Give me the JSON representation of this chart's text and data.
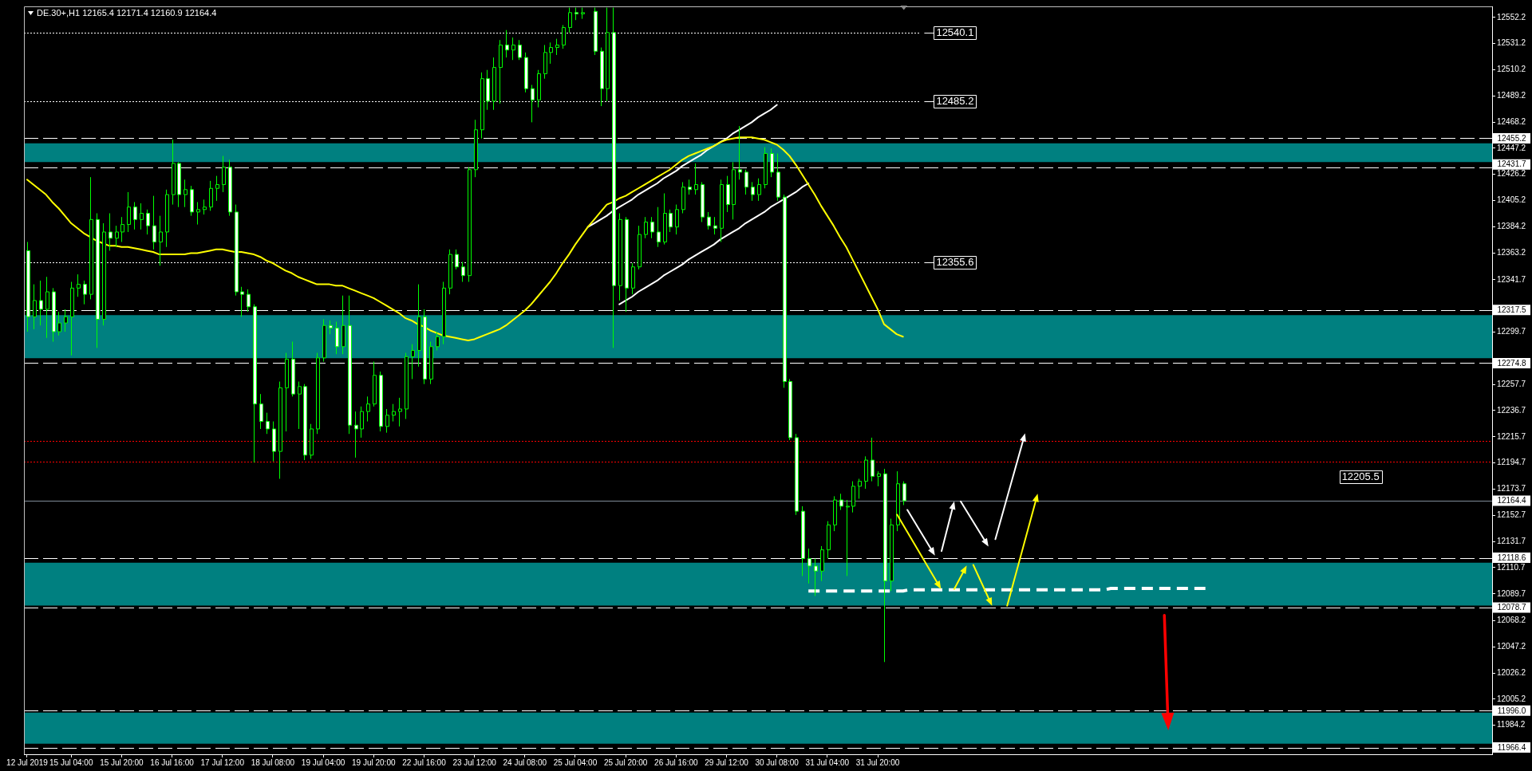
{
  "chart_data": {
    "type": "candlestick",
    "title": "DE.30+,H1 12165.4 12171.4 12160.9 12164.4",
    "categories": [
      "12 Jul 2019",
      null,
      null,
      null,
      null,
      null,
      null,
      "15 Jul 04:00",
      null,
      null,
      null,
      null,
      null,
      null,
      null,
      "15 Jul 20:00",
      null,
      null,
      null,
      null,
      null,
      null,
      null,
      "16 Jul 16:00",
      null,
      null,
      null,
      null,
      null,
      null,
      null,
      "17 Jul 12:00",
      null,
      null,
      null,
      null,
      null,
      null,
      null,
      "18 Jul 08:00",
      null,
      null,
      null,
      null,
      null,
      null,
      null,
      "19 Jul 04:00",
      null,
      null,
      null,
      null,
      null,
      null,
      null,
      "19 Jul 20:00",
      null,
      null,
      null,
      null,
      null,
      null,
      null,
      "22 Jul 16:00",
      null,
      null,
      null,
      null,
      null,
      null,
      null,
      "23 Jul 12:00",
      null,
      null,
      null,
      null,
      null,
      null,
      null,
      "24 Jul 08:00",
      null,
      null,
      null,
      null,
      null,
      null,
      null,
      "25 Jul 04:00",
      null,
      null,
      null,
      null,
      null,
      null,
      null,
      "25 Jul 20:00",
      null,
      null,
      null,
      null,
      null,
      null,
      null,
      "26 Jul 16:00",
      null,
      null,
      null,
      null,
      null,
      null,
      null,
      "29 Jul 12:00",
      null,
      null,
      null,
      null,
      null,
      null,
      null,
      "30 Jul 08:00",
      null,
      null,
      null,
      null,
      null,
      null,
      null,
      "31 Jul 04:00",
      null,
      null,
      null,
      null,
      null,
      null,
      null,
      "31 Jul 20:00",
      null,
      null,
      null,
      null,
      null,
      null,
      null,
      null,
      null,
      null,
      null,
      null,
      null,
      null,
      null,
      null,
      null,
      null,
      null,
      null,
      null,
      null,
      null,
      null,
      null,
      null,
      null,
      null,
      null,
      null,
      null,
      null,
      null,
      null,
      null,
      null,
      null,
      null,
      null,
      null,
      null,
      null,
      null,
      null,
      null,
      null,
      null,
      null,
      null,
      null,
      null,
      null,
      null,
      null,
      null,
      null,
      null,
      null,
      null,
      null,
      null,
      null,
      null,
      null,
      null,
      null,
      null,
      null,
      null,
      null,
      null,
      null,
      null,
      null,
      null,
      null,
      null,
      null,
      null,
      null,
      null,
      null,
      null,
      null,
      null,
      null,
      null,
      null,
      null,
      null,
      null,
      null,
      null,
      null,
      null,
      null,
      null
    ],
    "color": "#00ff00",
    "ohlc": [
      [
        12365,
        12372,
        12300,
        12312
      ],
      [
        12312,
        12338,
        12302,
        12325
      ],
      [
        12325,
        12341,
        12305,
        12318
      ],
      [
        12318,
        12344,
        12295,
        12332
      ],
      [
        12332,
        12335,
        12292,
        12300
      ],
      [
        12300,
        12316,
        12297,
        12307
      ],
      [
        12307,
        12318,
        12300,
        12312
      ],
      [
        12312,
        12340,
        12281,
        12335
      ],
      [
        12335,
        12346,
        12328,
        12338
      ],
      [
        12338,
        12341,
        12322,
        12330
      ],
      [
        12330,
        12424,
        12326,
        12390
      ],
      [
        12390,
        12395,
        12287,
        12310
      ],
      [
        12310,
        12387,
        12305,
        12380
      ],
      [
        12380,
        12395,
        12365,
        12375
      ],
      [
        12375,
        12385,
        12368,
        12380
      ],
      [
        12380,
        12392,
        12372,
        12386
      ],
      [
        12386,
        12412,
        12380,
        12400
      ],
      [
        12400,
        12404,
        12382,
        12390
      ],
      [
        12390,
        12403,
        12382,
        12395
      ],
      [
        12395,
        12398,
        12378,
        12385
      ],
      [
        12385,
        12409,
        12366,
        12372
      ],
      [
        12372,
        12393,
        12353,
        12380
      ],
      [
        12380,
        12414,
        12368,
        12410
      ],
      [
        12410,
        12454,
        12402,
        12435
      ],
      [
        12435,
        12436,
        12400,
        12410
      ],
      [
        12410,
        12422,
        12400,
        12414
      ],
      [
        12414,
        12417,
        12393,
        12396
      ],
      [
        12396,
        12404,
        12386,
        12398
      ],
      [
        12398,
        12406,
        12394,
        12400
      ],
      [
        12400,
        12421,
        12397,
        12415
      ],
      [
        12415,
        12425,
        12405,
        12418
      ],
      [
        12418,
        12441,
        12412,
        12432
      ],
      [
        12432,
        12438,
        12393,
        12396
      ],
      [
        12396,
        12402,
        12329,
        12332
      ],
      [
        12332,
        12336,
        12312,
        12330
      ],
      [
        12330,
        12334,
        12316,
        12320
      ],
      [
        12320,
        12322,
        12195,
        12242
      ],
      [
        12242,
        12250,
        12222,
        12228
      ],
      [
        12228,
        12235,
        12218,
        12222
      ],
      [
        12222,
        12228,
        12196,
        12204
      ],
      [
        12204,
        12260,
        12182,
        12255
      ],
      [
        12255,
        12283,
        12220,
        12278
      ],
      [
        12278,
        12292,
        12248,
        12250
      ],
      [
        12250,
        12260,
        12222,
        12256
      ],
      [
        12256,
        12258,
        12197,
        12201
      ],
      [
        12201,
        12226,
        12198,
        12222
      ],
      [
        12222,
        12283,
        12218,
        12279
      ],
      [
        12279,
        12310,
        12276,
        12305
      ],
      [
        12305,
        12309,
        12298,
        12303
      ],
      [
        12303,
        12308,
        12282,
        12288
      ],
      [
        12288,
        12329,
        12282,
        12305
      ],
      [
        12305,
        12329,
        12218,
        12225
      ],
      [
        12225,
        12236,
        12199,
        12222
      ],
      [
        12222,
        12240,
        12215,
        12236
      ],
      [
        12236,
        12248,
        12228,
        12242
      ],
      [
        12242,
        12276,
        12240,
        12265
      ],
      [
        12265,
        12268,
        12220,
        12224
      ],
      [
        12224,
        12238,
        12219,
        12233
      ],
      [
        12233,
        12242,
        12228,
        12236
      ],
      [
        12236,
        12247,
        12224,
        12238
      ],
      [
        12238,
        12283,
        12230,
        12280
      ],
      [
        12280,
        12290,
        12262,
        12285
      ],
      [
        12285,
        12338,
        12272,
        12312
      ],
      [
        12312,
        12318,
        12258,
        12262
      ],
      [
        12262,
        12292,
        12258,
        12288
      ],
      [
        12288,
        12300,
        12285,
        12296
      ],
      [
        12296,
        12340,
        12290,
        12335
      ],
      [
        12335,
        12366,
        12330,
        12362
      ],
      [
        12362,
        12366,
        12350,
        12352
      ],
      [
        12352,
        12356,
        12340,
        12345
      ],
      [
        12345,
        12432,
        12340,
        12430
      ],
      [
        12430,
        12470,
        12424,
        12462
      ],
      [
        12462,
        12508,
        12455,
        12503
      ],
      [
        12503,
        12510,
        12478,
        12485
      ],
      [
        12485,
        12520,
        12478,
        12512
      ],
      [
        12512,
        12534,
        12483,
        12530
      ],
      [
        12530,
        12542,
        12520,
        12526
      ],
      [
        12526,
        12536,
        12518,
        12530
      ],
      [
        12530,
        12534,
        12518,
        12520
      ],
      [
        12520,
        12524,
        12492,
        12495
      ],
      [
        12495,
        12498,
        12468,
        12486
      ],
      [
        12486,
        12510,
        12480,
        12507
      ],
      [
        12507,
        12530,
        12503,
        12524
      ],
      [
        12524,
        12532,
        12515,
        12528
      ],
      [
        12528,
        12535,
        12522,
        12530
      ],
      [
        12530,
        12546,
        12527,
        12544
      ],
      [
        12544,
        12560,
        12540,
        12556
      ],
      [
        12556,
        12560,
        12550,
        12555
      ],
      [
        12555,
        12560,
        12551,
        12556
      ],
      null,
      [
        12557,
        12560,
        12522,
        12525
      ],
      [
        12525,
        12528,
        12481,
        12495
      ],
      [
        12495,
        12560,
        12485,
        12540
      ],
      [
        12540,
        12560,
        12287,
        12337
      ],
      [
        12337,
        12395,
        12325,
        12390
      ],
      [
        12390,
        12392,
        12316,
        12335
      ],
      [
        12335,
        12355,
        12330,
        12352
      ],
      [
        12352,
        12385,
        12350,
        12378
      ],
      [
        12378,
        12392,
        12375,
        12388
      ],
      [
        12388,
        12392,
        12375,
        12380
      ],
      [
        12380,
        12400,
        12368,
        12372
      ],
      [
        12372,
        12411,
        12370,
        12395
      ],
      [
        12395,
        12398,
        12380,
        12384
      ],
      [
        12384,
        12402,
        12378,
        12398
      ],
      [
        12398,
        12420,
        12395,
        12416
      ],
      [
        12416,
        12422,
        12410,
        12414
      ],
      [
        12414,
        12435,
        12410,
        12418
      ],
      [
        12418,
        12420,
        12388,
        12392
      ],
      [
        12392,
        12396,
        12382,
        12385
      ],
      [
        12385,
        12392,
        12378,
        12383
      ],
      [
        12383,
        12422,
        12372,
        12418
      ],
      [
        12418,
        12425,
        12396,
        12402
      ],
      [
        12402,
        12436,
        12390,
        12430
      ],
      [
        12430,
        12465,
        12422,
        12428
      ],
      [
        12428,
        12430,
        12410,
        12416
      ],
      [
        12416,
        12420,
        12405,
        12410
      ],
      [
        12410,
        12423,
        12405,
        12418
      ],
      [
        12418,
        12448,
        12415,
        12443
      ],
      [
        12443,
        12447,
        12424,
        12428
      ],
      [
        12428,
        12443,
        12405,
        12408
      ],
      [
        12408,
        12410,
        12255,
        12260
      ],
      [
        12260,
        12262,
        12213,
        12215
      ],
      [
        12215,
        12218,
        12153,
        12156
      ],
      [
        12156,
        12160,
        12104,
        12118
      ],
      [
        12118,
        12126,
        12098,
        12112
      ],
      [
        12112,
        12118,
        12088,
        12108
      ],
      [
        12108,
        12128,
        12100,
        12125
      ],
      [
        12125,
        12148,
        12118,
        12145
      ],
      [
        12145,
        12168,
        12140,
        12165
      ],
      [
        12165,
        12170,
        12157,
        12160
      ],
      [
        12160,
        12165,
        12104,
        12160
      ],
      [
        12160,
        12180,
        12155,
        12176
      ],
      [
        12176,
        12182,
        12166,
        12180
      ],
      [
        12180,
        12200,
        12174,
        12197
      ],
      [
        12197,
        12215,
        12180,
        12184
      ],
      [
        12184,
        12188,
        12176,
        12186
      ],
      [
        12186,
        12190,
        12035,
        12100
      ],
      [
        12100,
        12150,
        12092,
        12145
      ],
      [
        12145,
        12188,
        12140,
        12178
      ],
      [
        12178,
        12180,
        12160.9,
        12164.4
      ],
      null,
      null,
      null,
      null,
      null,
      null,
      null,
      null,
      null,
      null,
      null,
      null,
      null,
      null,
      null,
      null,
      null,
      null,
      null,
      null,
      null,
      null,
      null,
      null,
      null,
      null,
      null,
      null,
      null,
      null,
      null,
      null,
      null,
      null,
      null,
      null,
      null,
      null,
      null,
      null,
      null,
      null,
      null,
      null,
      null,
      null,
      null,
      null,
      null,
      null,
      null,
      null,
      null,
      null,
      null,
      null,
      null,
      null,
      null,
      null,
      null,
      null,
      null,
      null,
      null,
      null,
      null,
      null,
      null,
      null,
      null,
      null,
      null,
      null,
      null,
      null,
      null,
      null,
      null,
      null,
      null,
      null,
      null,
      null,
      null,
      null,
      null,
      null,
      null,
      null,
      null,
      null,
      null
    ],
    "colors": [
      "#ffffff",
      "#000000",
      "#ffffff",
      "#000000",
      "#ffffff",
      "#000000",
      "#000000",
      "#000000",
      "#000000",
      "#ffffff",
      "#000000",
      "#ffffff",
      "#000000",
      "#ffffff",
      "#000000",
      "#000000",
      "#000000",
      "#ffffff",
      "#000000",
      "#ffffff",
      "#ffffff",
      "#000000",
      "#000000",
      "#000000",
      "#ffffff",
      "#000000",
      "#ffffff",
      "#000000",
      "#000000",
      "#000000",
      "#000000",
      "#000000",
      "#ffffff",
      "#ffffff",
      "#ffffff",
      "#ffffff",
      "#ffffff",
      "#ffffff",
      "#ffffff",
      "#ffffff",
      "#000000",
      "#000000",
      "#ffffff",
      "#000000",
      "#ffffff",
      "#000000",
      "#000000",
      "#000000",
      "#ffffff",
      "#ffffff",
      "#000000",
      "#ffffff",
      "#ffffff",
      "#000000",
      "#000000",
      "#000000",
      "#ffffff",
      "#000000",
      "#000000",
      "#000000",
      "#000000",
      "#000000",
      "#000000",
      "#ffffff",
      "#000000",
      "#000000",
      "#000000",
      "#000000",
      "#ffffff",
      "#ffffff",
      "#000000",
      "#000000",
      "#000000",
      "#ffffff",
      "#000000",
      "#000000",
      "#ffffff",
      "#000000",
      "#ffffff",
      "#ffffff",
      "#ffffff",
      "#000000",
      "#000000",
      "#000000",
      "#000000",
      "#000000",
      "#000000",
      "#ffffff",
      "#000000",
      null,
      "#ffffff",
      "#ffffff",
      "#000000",
      "#ffffff",
      "#000000",
      "#ffffff",
      "#000000",
      "#000000",
      "#000000",
      "#ffffff",
      "#ffffff",
      "#000000",
      "#ffffff",
      "#000000",
      "#000000",
      "#ffffff",
      "#000000",
      "#ffffff",
      "#ffffff",
      "#ffffff",
      "#000000",
      "#ffffff",
      "#000000",
      "#ffffff",
      "#ffffff",
      "#ffffff",
      "#000000",
      "#000000",
      "#ffffff",
      "#ffffff",
      "#ffffff",
      "#ffffff",
      "#ffffff",
      "#ffffff",
      "#ffffff",
      "#ffffff",
      "#000000",
      "#000000",
      "#000000",
      "#ffffff",
      "#000000",
      "#000000",
      "#000000",
      "#000000",
      "#ffffff",
      "#000000",
      "#ffffff",
      "#000000",
      "#000000",
      "#ffffff",
      null,
      null,
      null,
      null,
      null,
      null,
      null,
      null,
      null,
      null,
      null,
      null,
      null,
      null,
      null,
      null,
      null,
      null,
      null,
      null,
      null,
      null,
      null,
      null,
      null,
      null,
      null,
      null,
      null,
      null,
      null,
      null,
      null,
      null,
      null,
      null,
      null,
      null,
      null,
      null,
      null,
      null,
      null,
      null,
      null,
      null,
      null,
      null,
      null,
      null,
      null,
      null,
      null,
      null,
      null,
      null,
      null,
      null,
      null,
      null,
      null,
      null,
      null,
      null,
      null,
      null,
      null,
      null,
      null,
      null,
      null,
      null,
      null,
      null,
      null,
      null,
      null,
      null,
      null,
      null,
      null,
      null,
      null,
      null,
      null,
      null,
      null,
      null,
      null,
      null,
      null,
      null,
      null
    ],
    "series": [
      {
        "type": "line",
        "color": "#ffff00",
        "values": [
          12422,
          12418,
          12414,
          12410,
          12404,
          12399,
          12393,
          12387,
          12383,
          12379,
          12376,
          12373,
          12371,
          12369,
          12369,
          12368,
          12368,
          12367,
          12366,
          12365,
          12364,
          12362,
          12362,
          12362,
          12362,
          12362,
          12363,
          12363,
          12364,
          12365,
          12366,
          12366,
          12365,
          12364,
          12364,
          12363,
          12362,
          12360,
          12357,
          12355,
          12352,
          12349,
          12347,
          12344,
          12342,
          12340,
          12338,
          12338,
          12338,
          12337,
          12337,
          12335,
          12333,
          12331,
          12329,
          12327,
          12324,
          12321,
          12318,
          12315,
          12311,
          12309,
          12306,
          12304,
          12301,
          12299,
          12297,
          12296,
          12295,
          12294,
          12293,
          12294,
          12296,
          12298,
          12300,
          12302,
          12305,
          12309,
          12313,
          12317,
          12322,
          12328,
          12334,
          12340,
          12347,
          12355,
          12362,
          12370,
          12377,
          12384,
          12390,
          12396,
          12402,
          12404,
          12407,
          12409,
          12412,
          12415,
          12418,
          12421,
          12424,
          12427,
          12430,
          12434,
          12438,
          12441,
          12443,
          12445,
          12447,
          12449,
          12452,
          12454,
          12455,
          12456,
          12456,
          12456,
          12455,
          12454,
          12452,
          12450,
          12446,
          12441,
          12434,
          12426,
          12418,
          12410,
          12401,
          12393,
          12385,
          12376,
          12368,
          12358,
          12348,
          12338,
          12328,
          12318,
          12306,
          12302,
          12298,
          12296,
          null,
          null,
          null,
          null,
          null,
          null,
          null,
          null,
          null,
          null,
          null,
          null,
          null,
          null,
          null,
          null,
          null,
          null,
          null,
          null,
          null,
          null,
          null,
          null,
          null,
          null,
          null,
          null,
          null,
          null,
          null,
          null,
          null,
          null,
          null,
          null,
          null,
          null,
          null,
          null,
          null,
          null,
          null,
          null,
          null,
          null,
          null,
          null,
          null,
          null,
          null,
          null,
          null,
          null,
          null,
          null,
          null,
          null,
          null,
          null,
          null,
          null,
          null,
          null,
          null,
          null,
          null,
          null,
          null,
          null,
          null,
          null,
          null,
          null,
          null,
          null,
          null,
          null,
          null,
          null,
          null,
          null,
          null,
          null,
          null,
          null,
          null,
          null,
          null,
          null,
          null,
          null,
          null
        ]
      },
      {
        "type": "line",
        "color": "#ffffff",
        "values": [
          null,
          null,
          null,
          null,
          null,
          null,
          null,
          null,
          null,
          null,
          null,
          null,
          null,
          null,
          null,
          null,
          null,
          null,
          null,
          null,
          null,
          null,
          null,
          null,
          null,
          null,
          null,
          null,
          null,
          null,
          null,
          null,
          null,
          null,
          null,
          null,
          null,
          null,
          null,
          null,
          null,
          null,
          null,
          null,
          null,
          null,
          null,
          null,
          null,
          null,
          null,
          null,
          null,
          null,
          null,
          null,
          null,
          null,
          null,
          null,
          null,
          null,
          null,
          null,
          null,
          null,
          null,
          null,
          null,
          null,
          null,
          null,
          null,
          null,
          null,
          null,
          null,
          null,
          null,
          null,
          null,
          null,
          null,
          null,
          null,
          null,
          null,
          null,
          null,
          12384,
          12387,
          12390,
          12393,
          12397,
          12400,
          12403,
          12406,
          12410,
          12413,
          12416,
          12419,
          12423,
          12426,
          12429,
          12433,
          12436,
          12439,
          12442,
          12446,
          12449,
          12452,
          12455,
          12459,
          12462,
          12465,
          12468,
          12472,
          12475,
          12478,
          12482,
          null,
          null,
          null,
          null,
          null,
          null,
          null,
          null,
          null,
          null,
          null,
          null,
          null,
          null,
          null,
          null,
          null,
          null,
          null,
          null,
          null,
          null,
          null,
          null,
          null,
          null,
          null,
          null,
          null,
          null,
          null,
          null,
          null,
          null,
          null,
          null,
          null,
          null,
          null,
          null,
          null,
          null,
          null,
          null,
          null,
          null,
          null,
          null,
          null,
          null,
          null,
          null,
          null,
          null,
          null,
          null,
          null,
          null,
          null,
          null,
          null,
          null,
          null,
          null,
          null,
          null,
          null,
          null,
          null,
          null,
          null,
          null,
          null,
          null,
          null,
          null,
          null,
          null,
          null,
          null,
          null,
          null,
          null,
          null,
          null,
          null,
          null,
          null,
          null,
          null,
          null,
          null,
          null,
          null,
          null,
          null,
          null,
          null,
          null,
          null,
          null,
          null,
          null,
          null,
          null,
          null,
          null,
          null,
          null,
          null,
          null,
          null,
          null
        ]
      },
      {
        "type": "line",
        "color": "#ffffff",
        "values": [
          null,
          null,
          null,
          null,
          null,
          null,
          null,
          null,
          null,
          null,
          null,
          null,
          null,
          null,
          null,
          null,
          null,
          null,
          null,
          null,
          null,
          null,
          null,
          null,
          null,
          null,
          null,
          null,
          null,
          null,
          null,
          null,
          null,
          null,
          null,
          null,
          null,
          null,
          null,
          null,
          null,
          null,
          null,
          null,
          null,
          null,
          null,
          null,
          null,
          null,
          null,
          null,
          null,
          null,
          null,
          null,
          null,
          null,
          null,
          null,
          null,
          null,
          null,
          null,
          null,
          null,
          null,
          null,
          null,
          null,
          null,
          null,
          null,
          null,
          null,
          null,
          null,
          null,
          null,
          null,
          null,
          null,
          null,
          null,
          null,
          null,
          null,
          null,
          null,
          null,
          null,
          null,
          null,
          null,
          12322,
          12325,
          12328,
          12332,
          12335,
          12338,
          12341,
          12345,
          12348,
          12351,
          12354,
          12358,
          12361,
          12364,
          12367,
          12370,
          12374,
          12377,
          12380,
          12383,
          12387,
          12390,
          12393,
          12396,
          12400,
          12403,
          12406,
          12409,
          12412,
          12416,
          12419,
          null,
          null,
          null,
          null,
          null,
          null,
          null,
          null,
          null,
          null,
          null,
          null,
          null,
          null,
          null,
          null,
          null,
          null,
          null,
          null,
          null,
          null,
          null,
          null,
          null,
          null,
          null,
          null,
          null,
          null,
          null,
          null,
          null,
          null,
          null,
          null,
          null,
          null,
          null,
          null,
          null,
          null,
          null,
          null,
          null,
          null,
          null,
          null,
          null,
          null,
          null,
          null,
          null,
          null,
          null,
          null,
          null,
          null,
          null,
          null,
          null,
          null,
          null,
          null,
          null,
          null,
          null,
          null,
          null,
          null,
          null,
          null,
          null,
          null,
          null,
          null,
          null,
          null,
          null,
          null,
          null,
          null,
          null,
          null,
          null,
          null,
          null,
          null,
          null,
          null,
          null,
          null,
          null,
          null,
          null,
          null,
          null,
          null,
          null,
          null,
          null,
          null,
          null,
          null,
          null,
          null,
          null,
          null
        ]
      },
      {
        "type": "line",
        "color": "#ffffff",
        "line_style": "dashed",
        "values": [
          null,
          null,
          null,
          null,
          null,
          null,
          null,
          null,
          null,
          null,
          null,
          null,
          null,
          null,
          null,
          null,
          null,
          null,
          null,
          null,
          null,
          null,
          null,
          null,
          null,
          null,
          null,
          null,
          null,
          null,
          null,
          null,
          null,
          null,
          null,
          null,
          null,
          null,
          null,
          null,
          null,
          null,
          null,
          null,
          null,
          null,
          null,
          null,
          null,
          null,
          null,
          null,
          null,
          null,
          null,
          null,
          null,
          null,
          null,
          null,
          null,
          null,
          null,
          null,
          null,
          null,
          null,
          null,
          null,
          null,
          null,
          null,
          null,
          null,
          null,
          null,
          null,
          null,
          null,
          null,
          null,
          null,
          null,
          null,
          null,
          null,
          null,
          null,
          null,
          null,
          null,
          null,
          null,
          null,
          null,
          null,
          null,
          null,
          null,
          null,
          null,
          null,
          null,
          null,
          null,
          null,
          null,
          null,
          null,
          null,
          null,
          null,
          null,
          null,
          null,
          null,
          null,
          null,
          null,
          null,
          null,
          null,
          null,
          null,
          12092,
          12092,
          12092,
          12092,
          12092,
          12092,
          12092,
          12092,
          12092,
          12092,
          12092,
          12092,
          12092,
          12092,
          12092,
          12092,
          12093,
          12093,
          12093,
          12093,
          12093,
          12093,
          12093,
          12093,
          12093,
          12093,
          12093,
          12093,
          12093,
          12093,
          12093,
          12093,
          12093,
          12093,
          12093,
          12093,
          12093,
          12093,
          12093,
          12093,
          12093,
          12093,
          12093,
          12093,
          12093,
          12093,
          12093,
          12093,
          12094,
          12094,
          12094,
          12094,
          12094,
          12094,
          12094,
          12094,
          12094,
          12094,
          12094,
          12094,
          12094,
          12094,
          12094,
          12094,
          null,
          null,
          null,
          null,
          null,
          null,
          null,
          null,
          null,
          null,
          null,
          null,
          null,
          null,
          null,
          null,
          null,
          null,
          null,
          null,
          null,
          null,
          null,
          null,
          null,
          null,
          null,
          null,
          null,
          null,
          null,
          null,
          null,
          null,
          null,
          null,
          null,
          null,
          null,
          null,
          null,
          null,
          null,
          null,
          null
        ]
      }
    ],
    "ylim": [
      11961,
      12561
    ],
    "yticks": [
      12552.2,
      12531.2,
      12510.2,
      12489.2,
      12468.2,
      12447.2,
      12426.2,
      12405.2,
      12384.2,
      12363.2,
      12341.7,
      12299.7,
      12257.7,
      12236.7,
      12215.7,
      12194.7,
      12173.7,
      12152.7,
      12131.7,
      12110.7,
      12089.7,
      12068.2,
      12047.2,
      12026.2,
      12005.2,
      11984.2
    ],
    "bands": [
      {
        "axis": "y",
        "from": 12436.1,
        "to": 12451.2,
        "color": "#008080"
      },
      {
        "axis": "y",
        "from": 12278.8,
        "to": 12313.3,
        "color": "#008080"
      },
      {
        "axis": "y",
        "from": 12080.3,
        "to": 12114.6,
        "color": "#008080"
      },
      {
        "axis": "y",
        "from": 11969.5,
        "to": 11994.4,
        "color": "#008080"
      }
    ],
    "ref_lines": [
      {
        "axis": "y",
        "value": 12540.1,
        "label": "12540.1",
        "line_style": "dotted",
        "color": "#ffffff"
      },
      {
        "axis": "y",
        "value": 12485.2,
        "label": "12485.2",
        "line_style": "dotted",
        "color": "#ffffff"
      },
      {
        "axis": "y",
        "value": 12355.6,
        "label": "12355.6",
        "line_style": "dotted",
        "color": "#ffffff"
      },
      {
        "axis": "y",
        "value": 12455.2,
        "label": "12455.2",
        "line_style": "dashed",
        "color": "#ffffff"
      },
      {
        "axis": "y",
        "value": 12431.7,
        "label": "12431.7",
        "line_style": "dashed",
        "color": "#ffffff"
      },
      {
        "axis": "y",
        "value": 12317.5,
        "label": "12317.5",
        "line_style": "dashed",
        "color": "#ffffff"
      },
      {
        "axis": "y",
        "value": 12274.8,
        "label": "12274.8",
        "line_style": "dashed",
        "color": "#ffffff"
      },
      {
        "axis": "y",
        "value": 12212.5,
        "line_style": "dotted",
        "color": "#ff0000"
      },
      {
        "axis": "y",
        "value": 12195.6,
        "line_style": "dotted",
        "color": "#ff0000"
      },
      {
        "axis": "y",
        "value": 12164.4,
        "label": "12164.4",
        "line_style": "solid",
        "color": "#7f8c99"
      },
      {
        "axis": "y",
        "value": 12118.6,
        "label": "12118.6",
        "line_style": "dashed",
        "color": "#ffffff"
      },
      {
        "axis": "y",
        "value": 12078.7,
        "label": "12078.7",
        "line_style": "dashed",
        "color": "#ffffff"
      },
      {
        "axis": "y",
        "value": 11996.0,
        "label": "11996.0",
        "line_style": "dashed",
        "color": "#ffffff"
      },
      {
        "axis": "y",
        "value": 11966.4,
        "label": "11966.4",
        "line_style": "dashed",
        "color": "#ffffff"
      }
    ],
    "annotations": [
      "12205.5"
    ]
  }
}
